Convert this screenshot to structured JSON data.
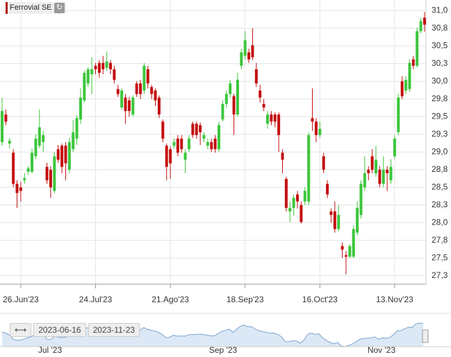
{
  "chart_data": {
    "type": "candlestick",
    "title": "Ferrovial SE",
    "categories": [
      null,
      null,
      null,
      null,
      null,
      "26.Jun'23",
      null,
      null,
      null,
      null,
      null,
      null,
      null,
      null,
      null,
      null,
      null,
      null,
      null,
      null,
      null,
      null,
      null,
      null,
      null,
      "24.Jul'23",
      null,
      null,
      null,
      null,
      null,
      null,
      null,
      null,
      null,
      null,
      null,
      null,
      null,
      null,
      null,
      null,
      null,
      null,
      null,
      "21.Ago'23",
      null,
      null,
      null,
      null,
      null,
      null,
      null,
      null,
      null,
      null,
      null,
      null,
      null,
      null,
      null,
      null,
      null,
      null,
      null,
      "18.Sep'23",
      null,
      null,
      null,
      null,
      null,
      null,
      null,
      null,
      null,
      null,
      null,
      null,
      null,
      null,
      null,
      null,
      null,
      null,
      null,
      "16.Oct'23",
      null,
      null,
      null,
      null,
      null,
      null,
      null,
      null,
      null,
      null,
      null,
      null,
      null,
      null,
      null,
      null,
      null,
      null,
      null,
      "13.Nov'23",
      null,
      null,
      null,
      null,
      null,
      null,
      null,
      null
    ],
    "open": [
      29.14,
      29.53,
      29.12,
      28.99,
      28.55,
      28.5,
      28.6,
      28.72,
      28.72,
      28.94,
      29.09,
      29.14,
      28.79,
      28.75,
      28.45,
      29.04,
      29.09,
      29.09,
      28.75,
      29.04,
      29.19,
      29.46,
      29.73,
      29.97,
      30.1,
      30.22,
      30.26,
      30.26,
      30.19,
      30.26,
      30.17,
      29.89,
      29.63,
      29.77,
      29.73,
      29.53,
      29.97,
      29.97,
      29.87,
      30.17,
      29.92,
      29.87,
      29.77,
      29.43,
      29.09,
      29.04,
      29.09,
      29.19,
      29.19,
      28.89,
      29.04,
      29.4,
      29.4,
      29.38,
      29.19,
      29.09,
      29.14,
      29.19,
      29.04,
      29.46,
      29.68,
      29.82,
      29.79,
      29.53,
      30.22,
      30.36,
      30.41,
      30.51,
      30.17,
      29.87,
      29.68,
      29.4,
      29.53,
      29.53,
      29.53,
      28.99,
      28.62,
      28.16,
      28.21,
      28.4,
      28.25,
      28.3,
      28.3,
      29.48,
      29.43,
      29.24,
      28.94,
      28.55,
      28.16,
      28.16,
      27.91,
      27.67,
      27.54,
      27.52,
      27.52,
      27.86,
      28.11,
      28.5,
      28.75,
      28.94,
      28.7,
      28.75,
      28.55,
      28.75,
      28.6,
      28.94,
      29.28,
      30.0,
      29.87,
      29.89,
      30.31,
      30.22,
      30.71,
      30.9
    ],
    "high": [
      29.77,
      29.6,
      29.2,
      29.04,
      28.6,
      28.58,
      28.7,
      28.8,
      29.05,
      29.25,
      29.6,
      29.3,
      28.85,
      28.8,
      29.0,
      29.1,
      29.12,
      29.14,
      29.2,
      29.45,
      29.52,
      29.9,
      30.15,
      30.2,
      30.34,
      30.26,
      30.3,
      30.36,
      30.42,
      30.3,
      30.22,
      29.95,
      29.9,
      29.82,
      29.78,
      29.8,
      30.0,
      30.02,
      30.26,
      30.22,
      29.95,
      29.9,
      29.8,
      29.46,
      29.12,
      29.08,
      29.19,
      29.24,
      29.24,
      29.04,
      29.24,
      29.43,
      29.43,
      29.42,
      29.28,
      29.19,
      29.19,
      29.24,
      29.43,
      29.73,
      29.87,
      30.02,
      29.82,
      30.12,
      30.46,
      30.71,
      30.46,
      30.75,
      30.26,
      29.95,
      29.75,
      29.58,
      29.58,
      29.56,
      29.56,
      29.04,
      28.65,
      28.3,
      28.4,
      28.45,
      28.3,
      28.5,
      29.28,
      29.9,
      29.48,
      29.43,
      28.99,
      28.6,
      28.2,
      28.3,
      28.25,
      27.72,
      27.6,
      27.7,
      27.96,
      28.3,
      28.6,
      28.94,
      28.8,
      29.04,
      29.09,
      28.8,
      28.94,
      28.8,
      28.9,
      29.24,
      29.82,
      30.07,
      30.07,
      30.31,
      30.36,
      30.76,
      30.9,
      30.98
    ],
    "low": [
      29.09,
      29.38,
      29.05,
      28.5,
      28.21,
      28.3,
      28.55,
      28.68,
      28.7,
      28.9,
      29.05,
      29.0,
      28.55,
      28.35,
      28.42,
      28.85,
      28.7,
      28.6,
      28.7,
      29.0,
      29.1,
      29.4,
      29.7,
      29.92,
      29.82,
      30.1,
      30.05,
      30.1,
      30.15,
      30.1,
      29.97,
      29.78,
      29.6,
      29.4,
      29.5,
      29.5,
      29.78,
      29.75,
      29.82,
      29.9,
      29.75,
      29.65,
      29.48,
      29.14,
      28.6,
      28.62,
      29.05,
      28.94,
      28.99,
      28.7,
      29.0,
      29.2,
      29.19,
      29.1,
      29.14,
      29.04,
      29.0,
      28.99,
      29.0,
      29.43,
      29.63,
      29.77,
      29.24,
      29.5,
      30.17,
      30.31,
      30.26,
      30.3,
      29.92,
      29.7,
      29.58,
      29.33,
      29.38,
      29.35,
      29.0,
      28.7,
      28.16,
      28.01,
      28.1,
      28.2,
      27.99,
      28.25,
      28.25,
      29.3,
      29.14,
      29.2,
      28.7,
      28.35,
      28.0,
      27.86,
      27.88,
      27.5,
      27.27,
      27.5,
      27.5,
      27.82,
      28.06,
      28.45,
      28.6,
      28.7,
      28.65,
      28.5,
      28.5,
      28.45,
      28.55,
      28.9,
      29.24,
      29.75,
      29.82,
      29.85,
      30.17,
      30.2,
      30.68,
      30.7
    ],
    "close": [
      29.58,
      29.43,
      29.16,
      28.55,
      28.42,
      28.45,
      28.63,
      28.77,
      28.99,
      29.19,
      29.35,
      29.24,
      28.6,
      28.5,
      28.94,
      28.89,
      28.79,
      28.84,
      29.14,
      29.28,
      29.48,
      29.77,
      30.12,
      30.17,
      30.17,
      30.17,
      30.12,
      30.17,
      30.28,
      30.17,
      30.02,
      29.82,
      29.87,
      29.58,
      29.58,
      29.77,
      29.82,
      29.82,
      30.22,
      29.97,
      29.82,
      29.73,
      29.53,
      29.19,
      28.79,
      28.84,
      29.14,
      28.99,
      29.04,
      28.99,
      29.19,
      29.24,
      29.24,
      29.28,
      29.24,
      29.14,
      29.04,
      29.04,
      29.38,
      29.68,
      29.82,
      29.97,
      29.53,
      30.02,
      30.41,
      30.58,
      30.31,
      30.34,
      29.97,
      29.77,
      29.63,
      29.53,
      29.43,
      29.43,
      29.24,
      28.89,
      28.21,
      28.21,
      28.35,
      28.3,
      28.01,
      28.45,
      29.24,
      29.43,
      29.24,
      29.33,
      28.75,
      28.4,
      28.11,
      27.91,
      28.11,
      27.62,
      27.52,
      27.67,
      27.91,
      28.21,
      28.55,
      28.7,
      28.7,
      28.75,
      28.89,
      28.55,
      28.75,
      28.7,
      28.79,
      29.19,
      29.77,
      29.79,
      30.02,
      30.26,
      30.22,
      30.71,
      30.85,
      30.8
    ],
    "up_color": "#3cc63c",
    "down_color": "#c40f0f",
    "ylim": [
      27.15,
      31.15
    ],
    "yticks": [
      {
        "value": 31.0,
        "label": "31,0"
      },
      {
        "value": 30.75,
        "label": "30,8"
      },
      {
        "value": 30.5,
        "label": "30,5"
      },
      {
        "value": 30.25,
        "label": "30,3"
      },
      {
        "value": 30.0,
        "label": "30,0"
      },
      {
        "value": 29.75,
        "label": "29,8"
      },
      {
        "value": 29.5,
        "label": "29,5"
      },
      {
        "value": 29.25,
        "label": "29,3"
      },
      {
        "value": 29.0,
        "label": "29,0"
      },
      {
        "value": 28.75,
        "label": "28,8"
      },
      {
        "value": 28.5,
        "label": "28,5"
      },
      {
        "value": 28.25,
        "label": "28,3"
      },
      {
        "value": 28.0,
        "label": "28,0"
      },
      {
        "value": 27.75,
        "label": "27,8"
      },
      {
        "value": 27.5,
        "label": "27,5"
      },
      {
        "value": 27.25,
        "label": "27,3"
      }
    ],
    "grid": true,
    "navigator": {
      "from": "2023-06-16",
      "to": "2023-11-23",
      "labels": [
        "Jul '23",
        "Sep '23",
        "Nov '23"
      ]
    }
  }
}
